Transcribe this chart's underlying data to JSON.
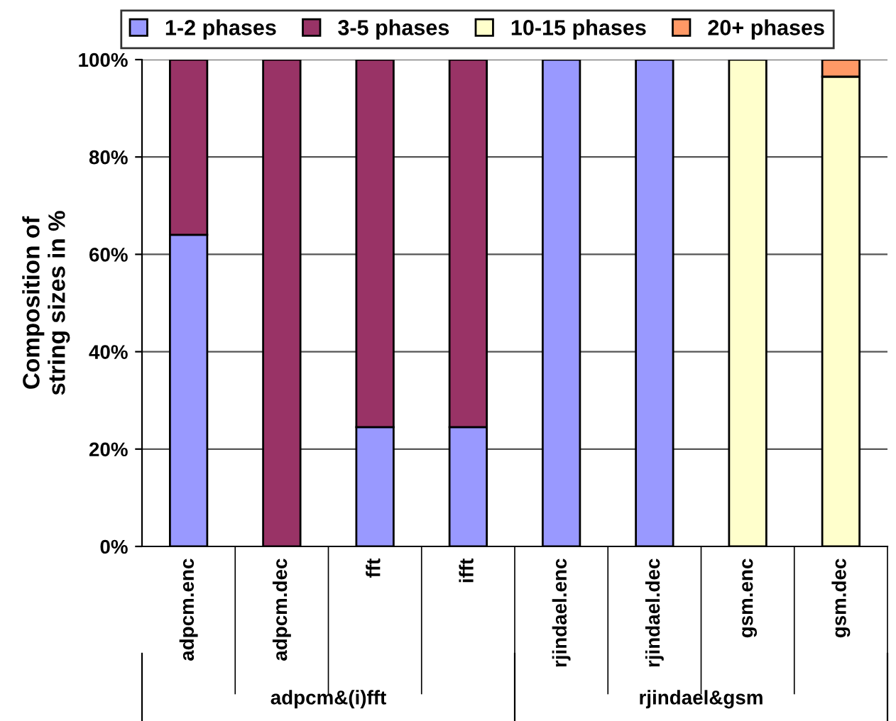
{
  "chart_data": {
    "type": "bar",
    "stacked": true,
    "ylabel": "Composition of\nstring sizes in %",
    "categories": [
      "adpcm.enc",
      "adpcm.dec",
      "fft",
      "ifft",
      "rjindael.enc",
      "rjindael.dec",
      "gsm.enc",
      "gsm.dec"
    ],
    "series": [
      {
        "name": "1-2 phases",
        "color": "#9999ff",
        "values": [
          64,
          0,
          24.5,
          24.5,
          100,
          100,
          0,
          0
        ]
      },
      {
        "name": "3-5 phases",
        "color": "#993366",
        "values": [
          36,
          100,
          75.5,
          75.5,
          0,
          0,
          0,
          0
        ]
      },
      {
        "name": "10-15 phases",
        "color": "#ffffcc",
        "values": [
          0,
          0,
          0,
          0,
          0,
          0,
          100,
          96.5
        ]
      },
      {
        "name": "20+ phases",
        "color": "#ff9966",
        "values": [
          0,
          0,
          0,
          0,
          0,
          0,
          0,
          3.5
        ]
      }
    ],
    "ylim": [
      0,
      100
    ],
    "yticks": [
      {
        "value": 0,
        "label": "0%"
      },
      {
        "value": 20,
        "label": "20%"
      },
      {
        "value": 40,
        "label": "40%"
      },
      {
        "value": 60,
        "label": "60%"
      },
      {
        "value": 80,
        "label": "80%"
      },
      {
        "value": 100,
        "label": "100%"
      }
    ],
    "grid": "y",
    "legend": "top",
    "annotations": [
      "adpcm&(i)fft",
      "rjindael&gsm"
    ]
  }
}
